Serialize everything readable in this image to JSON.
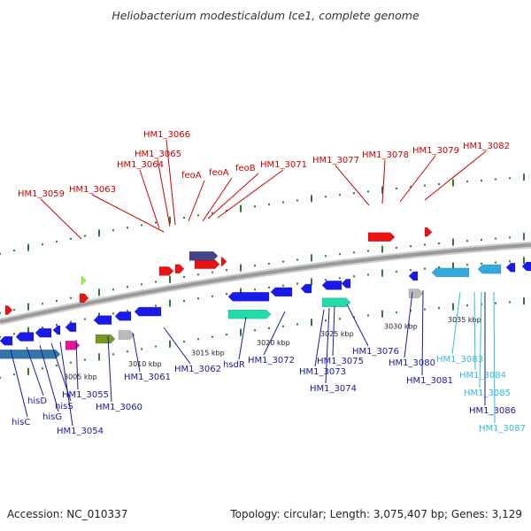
{
  "title": "Heliobacterium modesticaldum Ice1, complete genome",
  "footer": {
    "accession": "Accession: NC_010337",
    "topology": "Topology: circular; Length: 3,075,407 bp; Genes: 3,129"
  },
  "colors": {
    "top_label": "#cc0000",
    "bottom_label_dark": "#1a1a99",
    "bottom_label_light": "#33bbdd",
    "backbone": "#9a9a9a",
    "tick": "#2a7d2a"
  },
  "scale_labels": [
    "3005 kbp",
    "3010 kbp",
    "3015 kbp",
    "3020 kbp",
    "3025 kbp",
    "3030 kbp",
    "3035 kbp"
  ],
  "top_labels": [
    "HM1_3059",
    "HM1_3063",
    "HM1_3064",
    "HM1_3065",
    "HM1_3066",
    "feoA",
    "feoA",
    "feoB",
    "HM1_3071",
    "HM1_3077",
    "HM1_3078",
    "HM1_3079",
    "HM1_3082"
  ],
  "bottom_labels": [
    "hisC",
    "hisD",
    "hisG",
    "hisS",
    "HM1_3054",
    "HM1_3055",
    "HM1_3060",
    "HM1_3061",
    "HM1_3062",
    "hsdR",
    "HM1_3072",
    "HM1_3073",
    "HM1_3074",
    "HM1_3075",
    "HM1_3076",
    "HM1_3080",
    "HM1_3081",
    "HM1_3083",
    "HM1_3084",
    "HM1_3085",
    "HM1_3086",
    "HM1_3087"
  ]
}
